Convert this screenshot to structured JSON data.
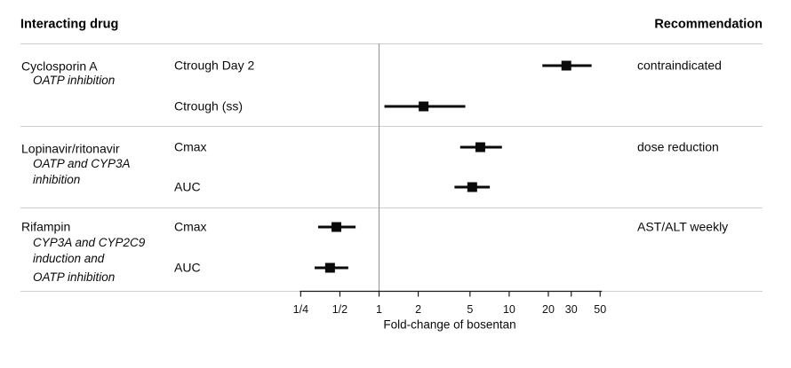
{
  "figure": {
    "headers": {
      "interacting_drug": "Interacting drug",
      "recommendation": "Recommendation"
    },
    "groups": [
      {
        "drug": "Cyclosporin A",
        "mechanism_lines": [
          "OATP inhibition"
        ],
        "recommendation": "contraindicated",
        "measures": [
          {
            "label": "Ctrough Day 2"
          },
          {
            "label": "Ctrough (ss)"
          }
        ]
      },
      {
        "drug": "Lopinavir/ritonavir",
        "mechanism_lines": [
          "OATP and CYP3A",
          "inhibition"
        ],
        "recommendation": "dose reduction",
        "measures": [
          {
            "label": "Cmax"
          },
          {
            "label": "AUC"
          }
        ]
      },
      {
        "drug": "Rifampin",
        "mechanism_lines": [
          "CYP3A and CYP2C9",
          "induction and",
          "OATP inhibition"
        ],
        "recommendation": "AST/ALT weekly",
        "measures": [
          {
            "label": "Cmax"
          },
          {
            "label": "AUC"
          }
        ]
      }
    ]
  },
  "chart_data": {
    "type": "scatter",
    "subtype": "forest-plot",
    "xlabel": "Fold-change of bosentan",
    "x_scale": "log",
    "xlim": [
      0.22,
      58
    ],
    "reference_line_x": 1,
    "x_ticks": [
      {
        "label": "1/4",
        "value": 0.25
      },
      {
        "label": "1/2",
        "value": 0.5
      },
      {
        "label": "1",
        "value": 1
      },
      {
        "label": "2",
        "value": 2
      },
      {
        "label": "5",
        "value": 5
      },
      {
        "label": "10",
        "value": 10
      },
      {
        "label": "20",
        "value": 20
      },
      {
        "label": "30",
        "value": 30
      },
      {
        "label": "50",
        "value": 50
      }
    ],
    "rows": [
      {
        "group": "Cyclosporin A",
        "measure": "Ctrough Day 2",
        "estimate": 27.5,
        "ci_low": 18,
        "ci_high": 43
      },
      {
        "group": "Cyclosporin A",
        "measure": "Ctrough (ss)",
        "estimate": 2.2,
        "ci_low": 1.1,
        "ci_high": 4.6
      },
      {
        "group": "Lopinavir/ritonavir",
        "measure": "Cmax",
        "estimate": 6.0,
        "ci_low": 4.2,
        "ci_high": 8.8
      },
      {
        "group": "Lopinavir/ritonavir",
        "measure": "AUC",
        "estimate": 5.2,
        "ci_low": 3.8,
        "ci_high": 7.1
      },
      {
        "group": "Rifampin",
        "measure": "Cmax",
        "estimate": 0.47,
        "ci_low": 0.34,
        "ci_high": 0.66
      },
      {
        "group": "Rifampin",
        "measure": "AUC",
        "estimate": 0.42,
        "ci_low": 0.32,
        "ci_high": 0.58
      }
    ],
    "legend": "none",
    "grid": "off",
    "colors": {
      "marker": "#0a0a0a",
      "ci_line": "#0a0a0a",
      "reference_line": "#9b9b9b",
      "axis": "#1a1a1a",
      "separator": "#cfcfcf",
      "text": "#000000",
      "background": "#ffffff"
    }
  }
}
